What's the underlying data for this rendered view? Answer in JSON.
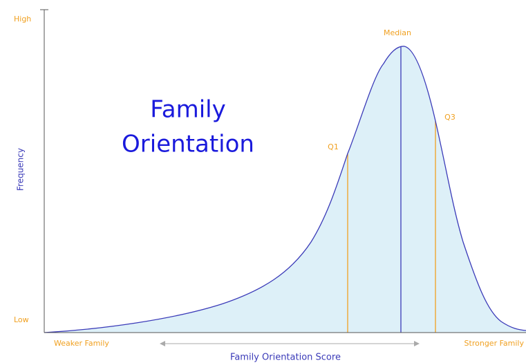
{
  "title": {
    "line1": "Family",
    "line2": "Orientation"
  },
  "y_axis": {
    "label": "Frequency",
    "high": "High",
    "low": "Low"
  },
  "x_axis": {
    "label": "Family Orientation Score",
    "left": "Weaker Family",
    "right": "Stronger Family"
  },
  "markers": {
    "q1": "Q1",
    "median": "Median",
    "q3": "Q3"
  }
}
